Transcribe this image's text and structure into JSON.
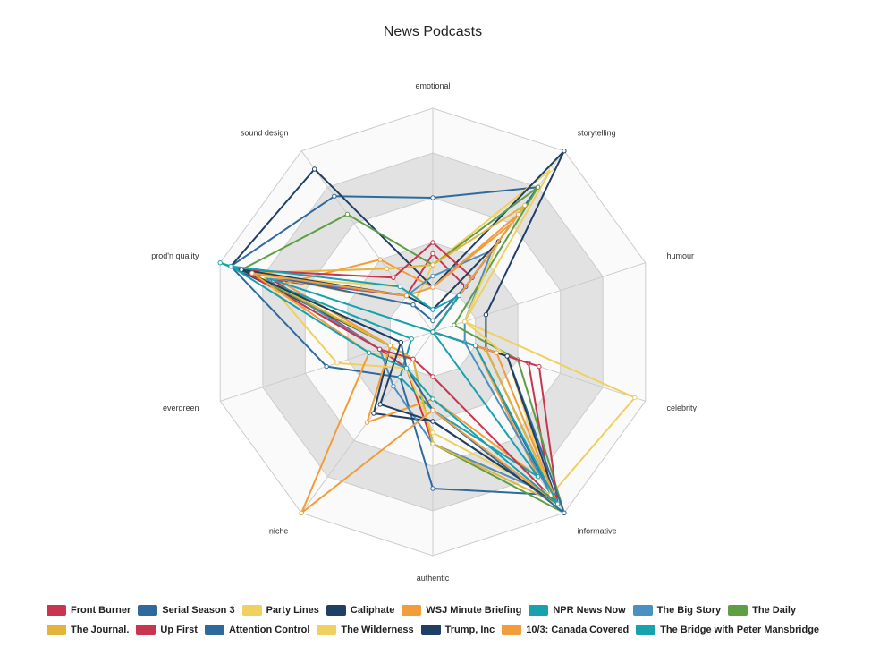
{
  "chart_data": {
    "type": "radar",
    "title": "News Podcasts",
    "axes": [
      "emotional",
      "storytelling",
      "humour",
      "celebrity",
      "informative",
      "authentic",
      "niche",
      "evergreen",
      "prod'n quality",
      "sound design"
    ],
    "range": [
      0,
      10
    ],
    "grid_levels": 5,
    "series": [
      {
        "name": "Front Burner",
        "color": "#c7354f",
        "values": [
          3.5,
          2.5,
          0,
          4.5,
          9.0,
          5.0,
          2.0,
          2.5,
          7.5,
          2.0
        ]
      },
      {
        "name": "Serial Season 3",
        "color": "#2e6a9e",
        "values": [
          6.0,
          8.0,
          0,
          2.0,
          9.0,
          7.0,
          2.5,
          5.0,
          9.5,
          7.5
        ]
      },
      {
        "name": "Party Lines",
        "color": "#f0d060",
        "values": [
          3.0,
          9.0,
          1.5,
          9.5,
          9.0,
          5.0,
          1.5,
          3.0,
          8.5,
          1.5
        ]
      },
      {
        "name": "Caliphate",
        "color": "#1f3f66",
        "values": [
          2.0,
          10.0,
          2.5,
          2.5,
          9.5,
          4.0,
          4.5,
          2.0,
          9.5,
          9.0
        ]
      },
      {
        "name": "WSJ Minute Briefing",
        "color": "#f39c3c",
        "values": [
          2.0,
          6.0,
          0,
          2.0,
          8.0,
          3.0,
          5.0,
          2.0,
          7.0,
          4.0
        ]
      },
      {
        "name": "NPR News Now",
        "color": "#17a2ae",
        "values": [
          0,
          0,
          0,
          0,
          8.0,
          3.5,
          2.5,
          1.0,
          10.0,
          0
        ]
      },
      {
        "name": "The Big Story",
        "color": "#4a90c0",
        "values": [
          2.5,
          4.5,
          1.5,
          1.5,
          9.0,
          5.0,
          3.0,
          2.5,
          8.0,
          2.0
        ]
      },
      {
        "name": "The Daily",
        "color": "#5e9e45",
        "values": [
          3.0,
          8.0,
          1.0,
          4.0,
          10.0,
          5.0,
          1.5,
          2.0,
          9.0,
          6.5
        ]
      },
      {
        "name": "The Journal.",
        "color": "#e2b43c",
        "values": [
          3.0,
          7.0,
          0,
          2.5,
          9.5,
          5.0,
          1.5,
          2.0,
          8.5,
          3.5
        ]
      },
      {
        "name": "Up First",
        "color": "#c7354f",
        "values": [
          4.0,
          3.0,
          0,
          5.0,
          9.5,
          2.0,
          1.5,
          2.5,
          9.0,
          3.0
        ]
      },
      {
        "name": "Attention Control",
        "color": "#2e6a9e",
        "values": [
          0.5,
          2.5,
          0,
          3.5,
          10.0,
          3.5,
          2.0,
          1.5,
          9.0,
          1.5
        ]
      },
      {
        "name": "The Wilderness",
        "color": "#f0d060",
        "values": [
          1.0,
          5.0,
          1.5,
          3.5,
          9.0,
          4.5,
          2.0,
          4.5,
          8.0,
          2.5
        ]
      },
      {
        "name": "Trump, Inc",
        "color": "#1f3f66",
        "values": [
          1.0,
          5.0,
          0,
          3.5,
          9.5,
          4.0,
          4.0,
          1.5,
          9.0,
          2.0
        ]
      },
      {
        "name": "10/3: Canada Covered",
        "color": "#f39c3c",
        "values": [
          2.0,
          6.5,
          0,
          3.0,
          9.5,
          3.5,
          10.0,
          3.0,
          8.5,
          2.0
        ]
      },
      {
        "name": "The Bridge with Peter Mansbridge",
        "color": "#17a2ae",
        "values": [
          1.0,
          2.0,
          0,
          2.0,
          9.5,
          3.0,
          2.0,
          3.0,
          9.5,
          2.5
        ]
      }
    ]
  }
}
